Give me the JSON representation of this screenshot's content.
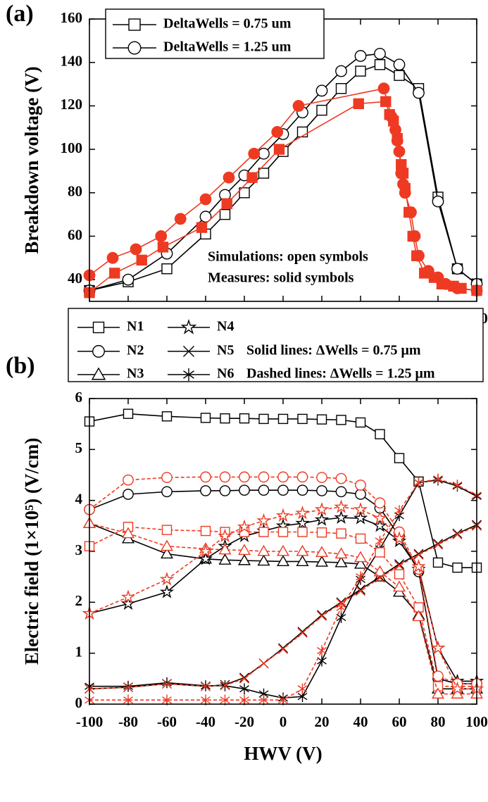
{
  "chart_data": [
    {
      "type": "line",
      "panel_label": "(a)",
      "x_label": "HWV (V)",
      "y_label": "Breakdown voltage (V)",
      "xlim": [
        -100,
        100
      ],
      "xticks": [
        -100,
        -80,
        -60,
        -40,
        -20,
        0,
        20,
        40,
        60,
        80,
        100
      ],
      "ylim": [
        30,
        160
      ],
      "yticks": [
        40,
        60,
        80,
        100,
        120,
        140,
        160
      ],
      "annotations": [
        "Simulations: open symbols",
        "Measures: solid symbols"
      ],
      "series": [
        {
          "name": "DeltaWells = 0.75 um",
          "color": "#000000",
          "marker": "square",
          "filled": false,
          "x": [
            -100,
            -80,
            -60,
            -40,
            -30,
            -20,
            -10,
            0,
            10,
            20,
            30,
            40,
            50,
            60,
            70,
            80,
            90,
            100
          ],
          "values": [
            35,
            39,
            45,
            61,
            70,
            80,
            89,
            99,
            108,
            118,
            128,
            136,
            139,
            134,
            128,
            78,
            45,
            38
          ]
        },
        {
          "name": "DeltaWells = 1.25 um",
          "color": "#000000",
          "marker": "circle",
          "filled": false,
          "x": [
            -100,
            -80,
            -60,
            -40,
            -30,
            -20,
            -10,
            0,
            10,
            20,
            30,
            40,
            50,
            60,
            70,
            80,
            90,
            100
          ],
          "values": [
            35,
            40,
            52,
            69,
            79,
            88,
            98,
            107,
            117,
            127,
            136,
            143,
            144,
            139,
            126,
            76,
            45,
            38
          ]
        },
        {
          "color": "#ee3a22",
          "marker": "square",
          "filled": true,
          "x": [
            -100,
            -87,
            -73,
            -62,
            -42,
            -29,
            -16,
            -2,
            39,
            53,
            55,
            57,
            59,
            61,
            62,
            63,
            65,
            67,
            69,
            73,
            78,
            82,
            88,
            92,
            100
          ],
          "values": [
            34,
            43,
            49,
            55,
            64,
            75,
            87,
            100,
            121,
            122,
            116,
            113,
            105,
            93,
            89,
            82,
            71,
            60,
            51,
            43,
            41,
            38,
            37,
            36,
            35
          ]
        },
        {
          "color": "#ee3a22",
          "marker": "circle",
          "filled": true,
          "x": [
            -100,
            -88,
            -76,
            -63,
            -53,
            -40,
            -28,
            -15,
            -3,
            8,
            52,
            56,
            58,
            59,
            60,
            61,
            62,
            63,
            66,
            68,
            70,
            75,
            80,
            84,
            90,
            100
          ],
          "values": [
            42,
            50,
            54,
            60,
            68,
            77,
            87,
            98,
            108,
            120,
            128,
            115,
            109,
            104,
            99,
            89,
            84,
            80,
            71,
            60,
            51,
            44,
            41,
            38,
            36,
            35
          ]
        }
      ]
    },
    {
      "type": "line",
      "panel_label": "(b)",
      "x_label": "HWV (V)",
      "y_label": "Electric field (1×10⁵) (V/cm)",
      "xlim": [
        -100,
        100
      ],
      "xticks": [
        -100,
        -80,
        -60,
        -40,
        -20,
        0,
        20,
        40,
        60,
        80,
        100
      ],
      "ylim": [
        0,
        6
      ],
      "yticks": [
        0,
        1,
        2,
        3,
        4,
        5,
        6
      ],
      "annotations": [
        "Solid lines: ΔWells = 0.75 μm",
        "Dashed lines: ΔWells = 1.25 μm"
      ],
      "x": [
        -100,
        -80,
        -60,
        -40,
        -30,
        -20,
        -10,
        0,
        10,
        20,
        30,
        40,
        50,
        60,
        70,
        80,
        90,
        100
      ],
      "series": [
        {
          "name": "N1",
          "color": "#000000",
          "marker": "square",
          "line_style": "solid",
          "values": [
            5.55,
            5.7,
            5.65,
            5.62,
            5.61,
            5.61,
            5.6,
            5.6,
            5.6,
            5.59,
            5.58,
            5.53,
            5.3,
            4.83,
            4.37,
            2.78,
            2.68,
            2.68
          ]
        },
        {
          "name": "N2",
          "color": "#000000",
          "marker": "circle",
          "line_style": "solid",
          "values": [
            3.82,
            4.12,
            4.17,
            4.19,
            4.19,
            4.2,
            4.2,
            4.2,
            4.2,
            4.19,
            4.17,
            4.12,
            3.85,
            3.3,
            2.6,
            0.5,
            0.4,
            0.4
          ]
        },
        {
          "name": "N3",
          "color": "#000000",
          "marker": "triangle",
          "line_style": "solid",
          "values": [
            3.55,
            3.25,
            2.95,
            2.85,
            2.83,
            2.82,
            2.81,
            2.8,
            2.8,
            2.79,
            2.78,
            2.75,
            2.5,
            2.2,
            1.75,
            0.3,
            0.3,
            0.3
          ]
        },
        {
          "name": "N4",
          "color": "#000000",
          "marker": "star",
          "line_style": "solid",
          "values": [
            1.78,
            1.97,
            2.2,
            2.85,
            3.1,
            3.3,
            3.4,
            3.5,
            3.55,
            3.62,
            3.66,
            3.65,
            3.5,
            3.2,
            2.65,
            1.1,
            0.45,
            0.45
          ]
        },
        {
          "name": "N5",
          "color": "#000000",
          "marker": "x",
          "line_style": "solid",
          "values": [
            0.3,
            0.33,
            0.4,
            0.35,
            0.38,
            0.52,
            0.8,
            1.1,
            1.42,
            1.75,
            2.0,
            2.25,
            2.5,
            2.75,
            2.95,
            3.15,
            3.35,
            3.52
          ]
        },
        {
          "name": "N6",
          "color": "#000000",
          "marker": "asterisk",
          "line_style": "solid",
          "values": [
            0.35,
            0.35,
            0.42,
            0.36,
            0.36,
            0.3,
            0.2,
            0.12,
            0.15,
            0.85,
            1.7,
            2.45,
            3.05,
            3.7,
            4.35,
            4.4,
            4.28,
            4.08
          ]
        },
        {
          "color": "#ee3a22",
          "marker": "square",
          "line_style": "dashed",
          "values": [
            3.1,
            3.48,
            3.42,
            3.4,
            3.38,
            3.38,
            3.38,
            3.38,
            3.38,
            3.37,
            3.35,
            3.25,
            2.98,
            2.55,
            1.9,
            0.35,
            0.35,
            0.35
          ]
        },
        {
          "color": "#ee3a22",
          "marker": "circle",
          "line_style": "dashed",
          "values": [
            3.82,
            4.4,
            4.45,
            4.46,
            4.46,
            4.46,
            4.46,
            4.46,
            4.46,
            4.45,
            4.43,
            4.3,
            3.95,
            3.38,
            2.65,
            0.55,
            0.4,
            0.4
          ]
        },
        {
          "color": "#ee3a22",
          "marker": "triangle",
          "line_style": "dashed",
          "values": [
            3.55,
            3.35,
            3.1,
            3.05,
            3.03,
            3.02,
            3.0,
            3.0,
            3.0,
            2.98,
            2.95,
            2.88,
            2.6,
            2.3,
            1.72,
            0.2,
            0.2,
            0.2
          ]
        },
        {
          "color": "#ee3a22",
          "marker": "star",
          "line_style": "dashed",
          "values": [
            1.78,
            2.1,
            2.45,
            3.0,
            3.3,
            3.48,
            3.6,
            3.7,
            3.75,
            3.82,
            3.87,
            3.82,
            3.65,
            3.25,
            2.7,
            1.1,
            0.3,
            0.3
          ]
        },
        {
          "color": "#ee3a22",
          "marker": "x",
          "line_style": "dashed",
          "values": [
            0.3,
            0.33,
            0.4,
            0.35,
            0.37,
            0.5,
            0.8,
            1.08,
            1.4,
            1.73,
            1.98,
            2.22,
            2.48,
            2.72,
            2.93,
            3.13,
            3.33,
            3.5
          ]
        },
        {
          "color": "#ee3a22",
          "marker": "asterisk",
          "line_style": "dashed",
          "values": [
            0.08,
            0.08,
            0.08,
            0.08,
            0.08,
            0.08,
            0.08,
            0.08,
            0.3,
            1.05,
            1.9,
            2.5,
            3.2,
            3.8,
            4.35,
            4.42,
            4.3,
            4.1
          ]
        }
      ]
    }
  ]
}
